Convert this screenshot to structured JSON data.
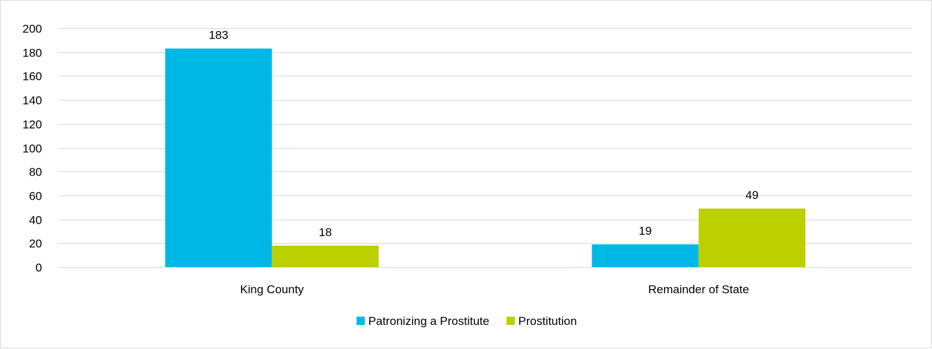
{
  "chart_data": {
    "type": "bar",
    "categories": [
      "King County",
      "Remainder of State"
    ],
    "series": [
      {
        "name": "Patronizing a Prostitute",
        "values": [
          183,
          19
        ],
        "color": "#00B8E6"
      },
      {
        "name": "Prostitution",
        "values": [
          18,
          49
        ],
        "color": "#BCD000"
      }
    ],
    "ylim": [
      0,
      200
    ],
    "yticks": [
      0,
      20,
      40,
      60,
      80,
      100,
      120,
      140,
      160,
      180,
      200
    ],
    "grid": true,
    "gridColor": "#d9d9d9",
    "legend": "bottom",
    "data_labels": true
  }
}
